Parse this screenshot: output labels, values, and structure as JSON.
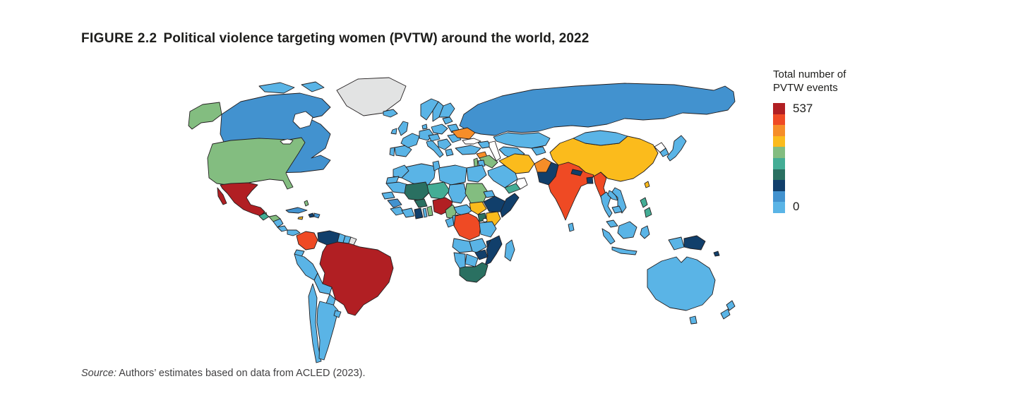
{
  "figure": {
    "label": "FIGURE 2.2",
    "title": "Political violence targeting women (PVTW) around the world, 2022"
  },
  "legend": {
    "title_line1": "Total number of",
    "title_line2": "PVTW events",
    "max_value": "537",
    "min_value": "0",
    "colors": [
      "#b11f23",
      "#ef4a24",
      "#f68d28",
      "#fbbb1c",
      "#83bd80",
      "#44ad95",
      "#2a7061",
      "#113f6b",
      "#4292cf",
      "#5ab4e6"
    ],
    "no_data_color": "#e2e3e3"
  },
  "source": {
    "label": "Source:",
    "text": "Authors’ estimates based on data from ACLED (2023)."
  },
  "map": {
    "ocean_color": "#ffffff",
    "border_color": "#231f20",
    "countries": {
      "greenland": "nodata",
      "alaska": 4,
      "canada": 8,
      "arctic-island-west": 9,
      "arctic-island-east": 9,
      "usa": 4,
      "mexico": 0,
      "mexico-baja": 0,
      "belize": 4,
      "guatemala": 5,
      "honduras": 4,
      "nicaragua": 9,
      "costa-rica": 9,
      "panama": 9,
      "cuba": 8,
      "jamaica": 3,
      "haiti": 7,
      "dominican-republic": 8,
      "bahamas": 4,
      "colombia": 1,
      "venezuela": 7,
      "guyana": 9,
      "suriname": 9,
      "french-guiana": "nodata",
      "brazil": 0,
      "ecuador": 9,
      "peru": 9,
      "bolivia": 9,
      "paraguay": 9,
      "chile": 9,
      "argentina": 9,
      "uruguay": 9,
      "iceland": 9,
      "ireland": 9,
      "united-kingdom": 9,
      "portugal": 9,
      "spain": 9,
      "france": 9,
      "germany": 9,
      "italy": 9,
      "norway": 9,
      "sweden": 9,
      "finland": 9,
      "denmark": 9,
      "poland": 9,
      "baltics": 9,
      "belarus": 9,
      "central-europe": 9,
      "balkans": 9,
      "greece": 9,
      "romania": 9,
      "ukraine": 2,
      "caucasus": 9,
      "russia": 8,
      "kazakhstan": 9,
      "uzbekistan-turkmenistan": 9,
      "kyrgyzstan-tajikistan": 9,
      "turkey": 9,
      "syria": 2,
      "iraq": 4,
      "israel-lebanon": 4,
      "jordan": 9,
      "saudi-arabia": 9,
      "yemen": 5,
      "oman": "white",
      "iran": 3,
      "afghanistan": 2,
      "pakistan": 7,
      "india": 1,
      "nepal": 7,
      "bangladesh": 7,
      "sri-lanka": 9,
      "myanmar": 1,
      "china": 3,
      "mongolia": 9,
      "north-korea": "white",
      "south-korea": 9,
      "japan": 9,
      "taiwan": 3,
      "thailand": 9,
      "laos": 9,
      "vietnam": 9,
      "cambodia": 9,
      "malaysia": 9,
      "indonesia-sumatra": 9,
      "indonesia-java": 9,
      "indonesia-borneo": 9,
      "indonesia-sulawesi": 9,
      "indonesia-papua": 9,
      "papua-new-guinea": 7,
      "solomon-islands": 7,
      "philippines-north": 5,
      "philippines-south": 5,
      "australia": 9,
      "tasmania": 9,
      "new-zealand-north": 9,
      "new-zealand-south": 9,
      "morocco": 9,
      "western-sahara": 9,
      "algeria": 9,
      "tunisia": 9,
      "libya": 9,
      "egypt": 9,
      "mauritania": 9,
      "senegal": 9,
      "guinea": 8,
      "sierra-leone-liberia": 9,
      "ivory-coast": 9,
      "ghana": 7,
      "togo": 9,
      "benin": 4,
      "mali": 6,
      "burkina-faso": 6,
      "niger": 5,
      "nigeria": 0,
      "chad": 9,
      "cameroon": 4,
      "central-african-republic": 9,
      "sudan": 4,
      "eritrea": 9,
      "ethiopia": 7,
      "somalia": 7,
      "south-sudan": 3,
      "uganda": 6,
      "kenya": 3,
      "drc": 1,
      "gabon": 9,
      "congo": 9,
      "tanzania": 9,
      "angola": 9,
      "zambia": 9,
      "malawi": 7,
      "mozambique": 7,
      "zimbabwe": 7,
      "botswana": 9,
      "namibia": 9,
      "south-africa": 6,
      "madagascar": 9
    }
  }
}
